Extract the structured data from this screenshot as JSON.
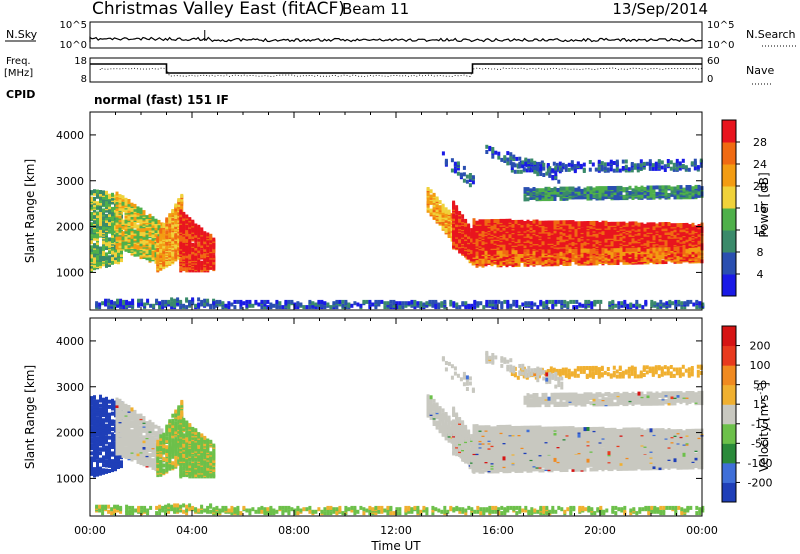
{
  "header": {
    "site": "Christmas Valley East (fitACF)",
    "beam": "Beam 11",
    "date": "13/Sep/2014"
  },
  "status_panels": {
    "nsky_label": "N.Sky",
    "nsky_ticks": [
      "10^5",
      "10^0"
    ],
    "nsearch_label": "N.Search",
    "freq_label_1": "Freq.",
    "freq_label_2": "[MHz]",
    "freq_ticks": [
      "18",
      "8"
    ],
    "nave_ticks": [
      "60",
      "0"
    ],
    "nave_label": "Nave",
    "cpid_label": "CPID",
    "cpid_text": "normal (fast) 151 IF"
  },
  "colors": {
    "power_scale": [
      "#1a1ae6",
      "#2a4fb0",
      "#3a8a6a",
      "#4fb04a",
      "#f0d23a",
      "#f39c12",
      "#f06a12",
      "#e8141e"
    ],
    "velocity_scale": [
      "#1f3fb8",
      "#3f6fd8",
      "#2a8a3a",
      "#6cc04a",
      "#c8c8c0",
      "#f0b030",
      "#f08a20",
      "#e83a1e",
      "#d61414"
    ]
  },
  "chart_data": [
    {
      "type": "heatmap",
      "name": "power",
      "xlabel": "Time UT",
      "ylabel": "Slant Range [km]",
      "x_ticks": [
        "00:00",
        "04:00",
        "08:00",
        "12:00",
        "16:00",
        "20:00",
        "00:00"
      ],
      "xlim_hours": [
        0,
        24
      ],
      "y_ticks": [
        4000,
        3000,
        2000,
        1000
      ],
      "ylim": [
        180,
        4500
      ],
      "colorbar_label": "Power [dB]",
      "colorbar_ticks": [
        28,
        24,
        20,
        16,
        12,
        8,
        4
      ],
      "colorbar_range": [
        0,
        30
      ]
    },
    {
      "type": "heatmap",
      "name": "velocity",
      "xlabel": "Time UT",
      "ylabel": "Slant Range [km]",
      "x_ticks": [
        "00:00",
        "04:00",
        "08:00",
        "12:00",
        "16:00",
        "20:00",
        "00:00"
      ],
      "xlim_hours": [
        0,
        24
      ],
      "y_ticks": [
        4000,
        3000,
        2000,
        1000
      ],
      "ylim": [
        180,
        4500
      ],
      "colorbar_label_main": "Velocity [m s",
      "colorbar_label_sup": "-1",
      "colorbar_label_close": "]",
      "colorbar_ticks": [
        200,
        100,
        50,
        15,
        -15,
        -50,
        -100,
        -200
      ],
      "colorbar_range": [
        -250,
        250
      ]
    }
  ]
}
